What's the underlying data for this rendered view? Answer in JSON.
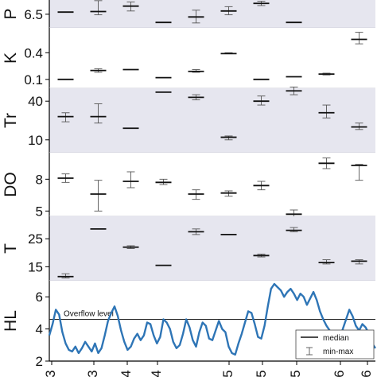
{
  "chart_data": [
    {
      "type": "box",
      "ylabel": "P",
      "ylabel_visible": "P",
      "background": "#e6e6ef",
      "ylim": [
        6.0,
        7.2
      ],
      "yticks": [
        6.5
      ],
      "tick_labels": [
        "6.5"
      ],
      "points": [
        {
          "x": 0.5,
          "median": 6.58,
          "min": 6.58,
          "max": 6.58
        },
        {
          "x": 1.5,
          "median": 6.6,
          "min": 6.48,
          "max": 7.0
        },
        {
          "x": 2.5,
          "median": 6.8,
          "min": 6.62,
          "max": 6.95
        },
        {
          "x": 3.5,
          "median": 6.2,
          "min": 6.2,
          "max": 6.2
        },
        {
          "x": 4.5,
          "median": 6.4,
          "min": 6.18,
          "max": 6.65
        },
        {
          "x": 5.5,
          "median": 6.62,
          "min": 6.48,
          "max": 6.78
        },
        {
          "x": 6.5,
          "median": 6.9,
          "min": 6.82,
          "max": 6.98
        },
        {
          "x": 7.5,
          "median": 6.2,
          "min": 6.2,
          "max": 6.2
        }
      ]
    },
    {
      "type": "box",
      "ylabel": "K",
      "background": "#ffffff",
      "ylim": [
        0.0,
        0.68
      ],
      "yticks": [
        0.1,
        0.4
      ],
      "tick_labels": [
        "0.1",
        "0.4"
      ],
      "points": [
        {
          "x": 0.5,
          "median": 0.1,
          "min": 0.1,
          "max": 0.1
        },
        {
          "x": 1.5,
          "median": 0.2,
          "min": 0.18,
          "max": 0.22
        },
        {
          "x": 2.5,
          "median": 0.21,
          "min": 0.21,
          "max": 0.21
        },
        {
          "x": 3.5,
          "median": 0.12,
          "min": 0.12,
          "max": 0.12
        },
        {
          "x": 4.5,
          "median": 0.19,
          "min": 0.18,
          "max": 0.21
        },
        {
          "x": 5.5,
          "median": 0.39,
          "min": 0.39,
          "max": 0.4
        },
        {
          "x": 6.5,
          "median": 0.1,
          "min": 0.1,
          "max": 0.1
        },
        {
          "x": 7.5,
          "median": 0.13,
          "min": 0.13,
          "max": 0.13
        },
        {
          "x": 8.5,
          "median": 0.16,
          "min": 0.15,
          "max": 0.17
        },
        {
          "x": 9.5,
          "median": 0.55,
          "min": 0.5,
          "max": 0.63
        }
      ]
    },
    {
      "type": "box",
      "ylabel": "Tr",
      "background": "#e6e6ef",
      "ylim": [
        0,
        50
      ],
      "yticks": [
        10,
        40
      ],
      "tick_labels": [
        "10",
        "40"
      ],
      "points": [
        {
          "x": 0.5,
          "median": 28,
          "min": 24,
          "max": 31
        },
        {
          "x": 1.5,
          "median": 28,
          "min": 23,
          "max": 38
        },
        {
          "x": 2.5,
          "median": 19,
          "min": 19,
          "max": 19
        },
        {
          "x": 3.5,
          "median": 47,
          "min": 47,
          "max": 47
        },
        {
          "x": 4.5,
          "median": 43,
          "min": 41,
          "max": 45
        },
        {
          "x": 5.5,
          "median": 12,
          "min": 10,
          "max": 13
        },
        {
          "x": 6.5,
          "median": 40,
          "min": 37,
          "max": 44
        },
        {
          "x": 7.5,
          "median": 48,
          "min": 45,
          "max": 51
        },
        {
          "x": 8.5,
          "median": 31,
          "min": 27,
          "max": 37
        },
        {
          "x": 9.5,
          "median": 20,
          "min": 18,
          "max": 23
        }
      ]
    },
    {
      "type": "box",
      "ylabel": "DO",
      "background": "#ffffff",
      "ylim": [
        4.5,
        10.5
      ],
      "yticks": [
        5,
        8
      ],
      "tick_labels": [
        "5",
        "8"
      ],
      "points": [
        {
          "x": 0.5,
          "median": 8.1,
          "min": 7.7,
          "max": 8.5
        },
        {
          "x": 1.5,
          "median": 6.6,
          "min": 5.0,
          "max": 7.9
        },
        {
          "x": 2.5,
          "median": 7.8,
          "min": 7.2,
          "max": 8.7
        },
        {
          "x": 3.5,
          "median": 7.7,
          "min": 7.5,
          "max": 8.0
        },
        {
          "x": 4.5,
          "median": 6.6,
          "min": 6.1,
          "max": 7.0
        },
        {
          "x": 5.5,
          "median": 6.7,
          "min": 6.4,
          "max": 6.9
        },
        {
          "x": 6.5,
          "median": 7.4,
          "min": 7.0,
          "max": 7.8
        },
        {
          "x": 7.5,
          "median": 4.7,
          "min": 4.4,
          "max": 5.1
        },
        {
          "x": 8.5,
          "median": 9.5,
          "min": 9.0,
          "max": 10.0
        },
        {
          "x": 9.5,
          "median": 9.3,
          "min": 7.9,
          "max": 9.4
        }
      ]
    },
    {
      "type": "box",
      "ylabel": "T",
      "background": "#e6e6ef",
      "ylim": [
        10,
        33
      ],
      "yticks": [
        15,
        25
      ],
      "tick_labels": [
        "15",
        "25"
      ],
      "points": [
        {
          "x": 0.5,
          "median": 11.5,
          "min": 11.0,
          "max": 12.5
        },
        {
          "x": 1.5,
          "median": 28.5,
          "min": 28.5,
          "max": 28.5
        },
        {
          "x": 2.5,
          "median": 22.0,
          "min": 21.5,
          "max": 22.5
        },
        {
          "x": 3.5,
          "median": 15.5,
          "min": 15.5,
          "max": 15.5
        },
        {
          "x": 4.5,
          "median": 27.5,
          "min": 26.5,
          "max": 28.5
        },
        {
          "x": 5.5,
          "median": 26.5,
          "min": 26.5,
          "max": 26.5
        },
        {
          "x": 6.5,
          "median": 19.0,
          "min": 18.5,
          "max": 19.5
        },
        {
          "x": 7.5,
          "median": 28.0,
          "min": 27.5,
          "max": 29.0
        },
        {
          "x": 8.5,
          "median": 16.5,
          "min": 16.0,
          "max": 17.5
        },
        {
          "x": 9.5,
          "median": 17.0,
          "min": 16.0,
          "max": 17.5
        }
      ]
    },
    {
      "type": "line",
      "ylabel": "HL",
      "background": "#ffffff",
      "ylim": [
        2.0,
        7.0
      ],
      "yticks": [
        2,
        4,
        6
      ],
      "tick_labels": [
        "2",
        "4",
        "6"
      ],
      "overflow_level": 4.6,
      "overflow_label": "Overflow level",
      "color": "#2e75b6",
      "x": [
        0.0,
        0.1,
        0.2,
        0.3,
        0.4,
        0.5,
        0.6,
        0.7,
        0.8,
        0.9,
        1.0,
        1.1,
        1.2,
        1.3,
        1.4,
        1.5,
        1.6,
        1.7,
        1.8,
        1.9,
        2.0,
        2.1,
        2.2,
        2.3,
        2.4,
        2.5,
        2.6,
        2.7,
        2.8,
        2.9,
        3.0,
        3.1,
        3.2,
        3.3,
        3.4,
        3.5,
        3.6,
        3.7,
        3.8,
        3.9,
        4.0,
        4.1,
        4.2,
        4.3,
        4.4,
        4.5,
        4.6,
        4.7,
        4.8,
        4.9,
        5.0,
        5.1,
        5.2,
        5.3,
        5.4,
        5.5,
        5.6,
        5.7,
        5.8,
        5.9,
        6.0,
        6.1,
        6.2,
        6.3,
        6.4,
        6.5,
        6.6,
        6.7,
        6.8,
        6.9,
        7.0,
        7.1,
        7.2,
        7.3,
        7.4,
        7.5,
        7.6,
        7.7,
        7.8,
        7.9,
        8.0,
        8.1,
        8.2,
        8.3,
        8.4,
        8.5,
        8.6,
        8.7,
        8.8,
        8.9,
        9.0,
        9.1,
        9.2,
        9.3,
        9.4,
        9.5,
        9.6,
        9.7,
        9.8,
        9.9,
        10.0
      ],
      "y": [
        3.6,
        4.3,
        5.2,
        4.9,
        3.8,
        3.1,
        2.7,
        2.6,
        2.9,
        2.5,
        2.8,
        3.2,
        2.9,
        2.6,
        3.1,
        2.5,
        2.8,
        3.6,
        4.5,
        5.0,
        5.4,
        4.8,
        3.9,
        3.2,
        2.7,
        2.9,
        3.4,
        3.7,
        3.3,
        3.6,
        4.4,
        4.3,
        3.6,
        3.1,
        3.5,
        4.6,
        4.4,
        4.0,
        3.2,
        2.8,
        3.0,
        3.7,
        4.6,
        4.1,
        3.3,
        2.9,
        3.8,
        4.4,
        4.2,
        3.4,
        3.3,
        3.9,
        4.5,
        4.0,
        3.8,
        2.9,
        2.5,
        2.4,
        3.1,
        3.7,
        4.4,
        5.1,
        5.0,
        4.3,
        3.5,
        3.4,
        4.2,
        5.4,
        6.5,
        6.8,
        6.6,
        6.4,
        6.0,
        6.3,
        6.5,
        6.2,
        5.8,
        6.2,
        6.0,
        5.5,
        5.9,
        6.3,
        5.8,
        5.1,
        4.6,
        4.2,
        3.9,
        3.3,
        3.0,
        3.4,
        4.0,
        4.6,
        5.2,
        4.8,
        4.2,
        3.9,
        4.3,
        4.1,
        3.7,
        3.1,
        2.8
      ]
    }
  ],
  "x_axis": {
    "tick_labels": [
      "3",
      "3",
      "4",
      "4",
      "5",
      "5",
      "5",
      "6",
      "6"
    ]
  },
  "legend": {
    "median_label": "median",
    "minmax_label": "min-max"
  }
}
